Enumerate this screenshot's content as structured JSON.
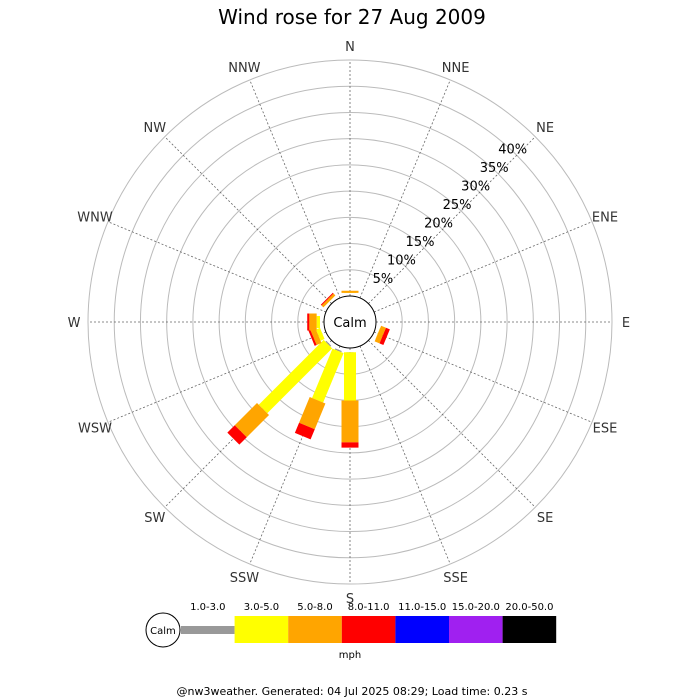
{
  "chart_data": {
    "type": "windrose",
    "title": "Wind rose for 27 Aug 2009",
    "directions": [
      "N",
      "NNE",
      "NE",
      "ENE",
      "E",
      "ESE",
      "SE",
      "SSE",
      "S",
      "SSW",
      "SW",
      "WSW",
      "W",
      "WNW",
      "NW",
      "NNW"
    ],
    "ring_labels": [
      "5%",
      "10%",
      "15%",
      "20%",
      "25%",
      "30%",
      "35%",
      "40%"
    ],
    "ring_step": 5,
    "rmax": 45,
    "calm_label": "Calm",
    "unit": "mph",
    "speed_bins": [
      {
        "label": "1.0-3.0",
        "color": "#999999"
      },
      {
        "label": "3.0-5.0",
        "color": "#ffff00"
      },
      {
        "label": "5.0-8.0",
        "color": "#ffa500"
      },
      {
        "label": "8.0-11.0",
        "color": "#ff0000"
      },
      {
        "label": "11.0-15.0",
        "color": "#0000ff"
      },
      {
        "label": "15.0-20.0",
        "color": "#a020f0"
      },
      {
        "label": "20.0-50.0",
        "color": "#000000"
      }
    ],
    "series": [
      {
        "direction": "N",
        "values": [
          0,
          0.6,
          0.4,
          0,
          0,
          0,
          0
        ]
      },
      {
        "direction": "NNE",
        "values": [
          0,
          0,
          0,
          0,
          0,
          0,
          0
        ]
      },
      {
        "direction": "NE",
        "values": [
          0,
          0,
          0,
          0,
          0,
          0,
          0
        ]
      },
      {
        "direction": "ENE",
        "values": [
          0,
          0,
          0,
          0,
          0,
          0,
          0
        ]
      },
      {
        "direction": "E",
        "values": [
          0,
          0,
          0,
          0,
          0,
          0,
          0
        ]
      },
      {
        "direction": "ESE",
        "values": [
          0,
          0.8,
          1.0,
          0.8,
          0,
          0,
          0
        ]
      },
      {
        "direction": "SE",
        "values": [
          0,
          0,
          0,
          0,
          0,
          0,
          0
        ]
      },
      {
        "direction": "SSE",
        "values": [
          0,
          0,
          0,
          0,
          0,
          0,
          0
        ]
      },
      {
        "direction": "S",
        "values": [
          0.8,
          9.2,
          8.0,
          1.0,
          0,
          0,
          0
        ]
      },
      {
        "direction": "SSW",
        "values": [
          1.0,
          10.2,
          5.3,
          2.1,
          0,
          0,
          0
        ]
      },
      {
        "direction": "SW",
        "values": [
          1.0,
          17.5,
          6.0,
          2.0,
          0,
          0,
          0
        ]
      },
      {
        "direction": "WSW",
        "values": [
          0,
          1.6,
          1.0,
          0.4,
          0,
          0,
          0
        ]
      },
      {
        "direction": "W",
        "values": [
          0,
          1.4,
          1.4,
          0.4,
          0,
          0,
          0
        ]
      },
      {
        "direction": "WNW",
        "values": [
          0,
          0,
          0,
          0,
          0,
          0,
          0
        ]
      },
      {
        "direction": "NW",
        "values": [
          0,
          0.6,
          0.5,
          0.2,
          0,
          0,
          0
        ]
      },
      {
        "direction": "NNW",
        "values": [
          0,
          0,
          0,
          0,
          0,
          0,
          0
        ]
      }
    ]
  },
  "footer": "@nw3weather. Generated: 04 Jul 2025 08:29; Load time: 0.23 s"
}
